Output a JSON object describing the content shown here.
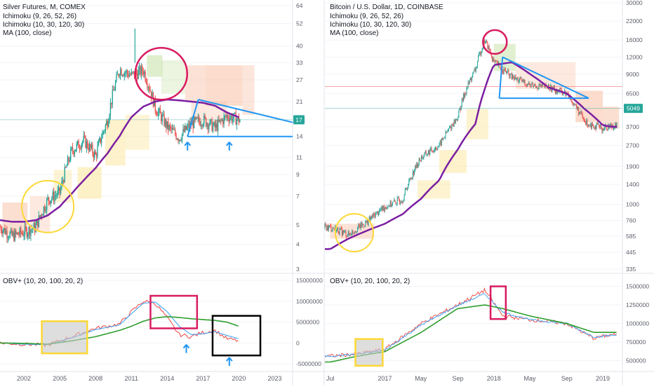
{
  "colors": {
    "up": "#26a69a",
    "down": "#ef5350",
    "ma": "#7b1fa2",
    "obv_fast": "#ef5350",
    "obv_slow": "#42a5f5",
    "obv_long": "#2e9e2e",
    "annot_circle_pink": "#d81b60",
    "annot_circle_yellow": "#fdd835",
    "annot_trend": "#2196f3",
    "cloud_warm": "#f8bfa4",
    "cloud_yellow": "#fbe7a1",
    "cloud_green": "#c5e1a5",
    "price_tag": "#26a69a"
  },
  "left": {
    "title": "Silver Futures, M, COMEX",
    "legend": [
      "Ichimoku (9, 26, 52, 26)",
      "Ichimoku (10, 30, 120, 30)",
      "MA (100, close)"
    ],
    "price_tag": "17",
    "obv_label": "OBV+ (10, 20, 100, 20, 2)",
    "y_ticks": [
      "64",
      "52",
      "40",
      "33",
      "27",
      "21",
      "17",
      "14",
      "11",
      "9",
      "7",
      "5",
      "4",
      "3"
    ],
    "obv_ticks": [
      "15000000",
      "10000000",
      "5000000",
      "0",
      "-5000000"
    ],
    "x_ticks": [
      "2002",
      "2005",
      "2008",
      "2011",
      "2014",
      "2017",
      "2020",
      "2023"
    ]
  },
  "right": {
    "title": "Bitcoin / U.S. Dollar, 1D, COINBASE",
    "legend": [
      "Ichimoku (9, 26, 52, 26)",
      "Ichimoku (10, 30, 120, 30)",
      "MA (100, close)"
    ],
    "price_tag": "5049",
    "obv_label": "OBV+ (10, 20, 100, 20, 2)",
    "y_ticks": [
      "30000",
      "22000",
      "16000",
      "12000",
      "9000",
      "6500",
      "5000",
      "3700",
      "2700",
      "1900",
      "1400",
      "1000",
      "760",
      "585",
      "445",
      "335"
    ],
    "obv_ticks": [
      "1500000",
      "1250000",
      "1000000",
      "750000",
      "500000"
    ],
    "x_ticks": [
      "Jul",
      "2017",
      "May",
      "Sep",
      "2018",
      "May",
      "Sep",
      "2019"
    ]
  },
  "chart_data": [
    {
      "type": "candlestick",
      "title": "Silver Futures, M, COMEX",
      "y_scale": "log",
      "ylim": [
        3,
        64
      ],
      "x": [
        2000,
        2001,
        2002,
        2003,
        2004,
        2005,
        2006,
        2007,
        2008,
        2009,
        2010,
        2011,
        2012,
        2013,
        2014,
        2015,
        2016,
        2017,
        2018,
        2019,
        2020
      ],
      "close": [
        4.9,
        4.4,
        4.6,
        4.9,
        6.7,
        7.3,
        11.8,
        13.4,
        11.2,
        16.8,
        30.5,
        28.5,
        30.2,
        19.5,
        15.7,
        13.8,
        16.2,
        17.0,
        15.5,
        17.8,
        17.0
      ],
      "ma100": [
        5.3,
        5.2,
        5.2,
        5.3,
        5.6,
        6.2,
        7.2,
        8.4,
        9.7,
        11.5,
        14.0,
        17.5,
        19.8,
        21.0,
        21.5,
        21.3,
        21.0,
        20.7,
        20.0,
        18.5,
        17.5
      ],
      "annotations": {
        "support_level": 14,
        "price_tag": 17
      }
    },
    {
      "type": "line",
      "title": "OBV+ (10, 20, 100, 20, 2)",
      "ylim": [
        -6000000,
        15000000
      ],
      "x": [
        2000,
        2002,
        2004,
        2006,
        2008,
        2010,
        2011,
        2012,
        2013,
        2014,
        2015,
        2016,
        2017,
        2018,
        2019,
        2020
      ],
      "series": [
        {
          "name": "OBV",
          "values": [
            0,
            -300000,
            -500000,
            1500000,
            3500000,
            4500000,
            7500000,
            10000000,
            9500000,
            6000000,
            2000000,
            1500000,
            2500000,
            3000000,
            1000000,
            500000
          ]
        },
        {
          "name": "OBV MA",
          "values": [
            0,
            -300000,
            -400000,
            1200000,
            3200000,
            4300000,
            7000000,
            9500000,
            9800000,
            7500000,
            4000000,
            2000000,
            2200000,
            2700000,
            1800000,
            1000000
          ]
        },
        {
          "name": "OBV Long MA",
          "values": [
            0,
            -100000,
            -300000,
            500000,
            1500000,
            3000000,
            4000000,
            5200000,
            6000000,
            6300000,
            6100000,
            5800000,
            5600000,
            5400000,
            5000000,
            4000000
          ]
        }
      ]
    },
    {
      "type": "candlestick",
      "title": "Bitcoin / U.S. Dollar, 1D, COINBASE",
      "y_scale": "log",
      "ylim": [
        335,
        30000
      ],
      "x": [
        "2016-07",
        "2016-09",
        "2016-11",
        "2017-01",
        "2017-03",
        "2017-05",
        "2017-07",
        "2017-09",
        "2017-11",
        "2017-12",
        "2018-01",
        "2018-03",
        "2018-05",
        "2018-07",
        "2018-09",
        "2018-11",
        "2019-01",
        "2019-02"
      ],
      "close": [
        680,
        600,
        740,
        960,
        1100,
        2200,
        2700,
        4300,
        9800,
        16000,
        11000,
        8500,
        7500,
        7200,
        6500,
        4000,
        3600,
        3800
      ],
      "ma100": [
        470,
        560,
        640,
        720,
        850,
        1100,
        1500,
        2500,
        3900,
        7000,
        10500,
        11000,
        9000,
        7200,
        6500,
        5000,
        3800,
        3700
      ],
      "annotations": {
        "support_level": 6000,
        "price_tag": 5049
      }
    },
    {
      "type": "line",
      "title": "OBV+ (10, 20, 100, 20, 2)",
      "ylim": [
        400000,
        1600000
      ],
      "x": [
        "2016-07",
        "2016-10",
        "2017-01",
        "2017-05",
        "2017-09",
        "2017-12",
        "2018-02",
        "2018-05",
        "2018-09",
        "2018-12",
        "2019-02"
      ],
      "series": [
        {
          "name": "OBV",
          "values": [
            560000,
            590000,
            650000,
            1000000,
            1250000,
            1450000,
            1100000,
            1050000,
            1000000,
            800000,
            850000
          ]
        },
        {
          "name": "OBV MA",
          "values": [
            560000,
            585000,
            640000,
            980000,
            1240000,
            1400000,
            1150000,
            1050000,
            1000000,
            820000,
            840000
          ]
        },
        {
          "name": "OBV Long MA",
          "values": [
            480000,
            560000,
            620000,
            880000,
            1200000,
            1250000,
            1200000,
            1100000,
            1000000,
            880000,
            880000
          ]
        }
      ]
    }
  ]
}
